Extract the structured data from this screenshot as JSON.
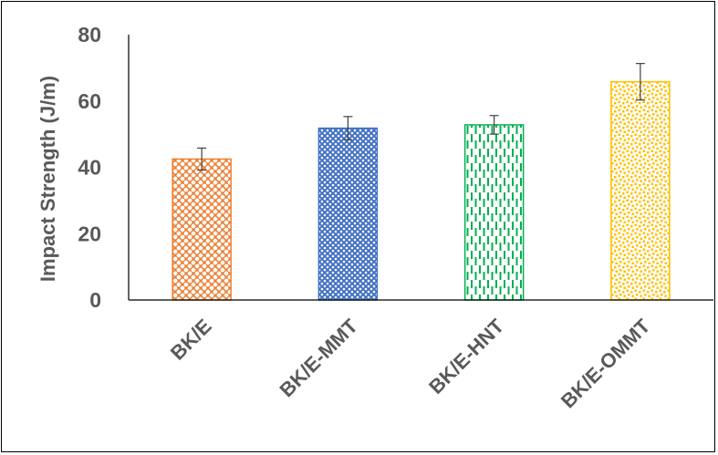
{
  "chart_data": {
    "type": "bar",
    "title": "",
    "xlabel": "",
    "ylabel": "Impact Strength (J/m)",
    "ylim": [
      0,
      80
    ],
    "yticks": [
      0,
      20,
      40,
      60,
      80
    ],
    "grid": false,
    "categories": [
      "BK/E",
      "BK/E-MMT",
      "BK/E-HNT",
      "BK/E-OMMT"
    ],
    "values": [
      42.5,
      51.8,
      52.8,
      65.8
    ],
    "errors": [
      3.3,
      3.5,
      2.8,
      5.5
    ],
    "colors": [
      "#ED7D31",
      "#4472C4",
      "#00B050",
      "#FFC000"
    ],
    "patterns": [
      "weave",
      "diamond-dots",
      "dashed-vertical",
      "confetti"
    ]
  }
}
